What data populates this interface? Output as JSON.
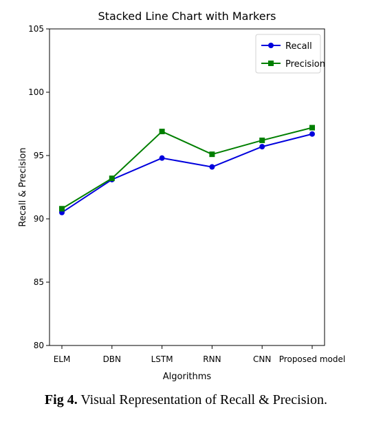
{
  "chart_data": {
    "type": "line",
    "title": "Stacked Line Chart with Markers",
    "xlabel": "Algorithms",
    "ylabel": "Recall & Precision",
    "categories": [
      "ELM",
      "DBN",
      "LSTM",
      "RNN",
      "CNN",
      "Proposed model"
    ],
    "ylim": [
      80,
      105
    ],
    "yticks": [
      80,
      85,
      90,
      95,
      100,
      105
    ],
    "grid": false,
    "legend": "top-right",
    "series": [
      {
        "name": "Recall",
        "color": "#0000dd",
        "marker": "circle",
        "values": [
          90.5,
          93.1,
          94.8,
          94.1,
          95.7,
          96.7
        ]
      },
      {
        "name": "Precision",
        "color": "#007f00",
        "marker": "square",
        "values": [
          90.8,
          93.2,
          96.9,
          95.1,
          96.2,
          97.2
        ]
      }
    ]
  },
  "caption": {
    "label": "Fig 4.",
    "text": " Visual Representation of Recall & Precision."
  }
}
